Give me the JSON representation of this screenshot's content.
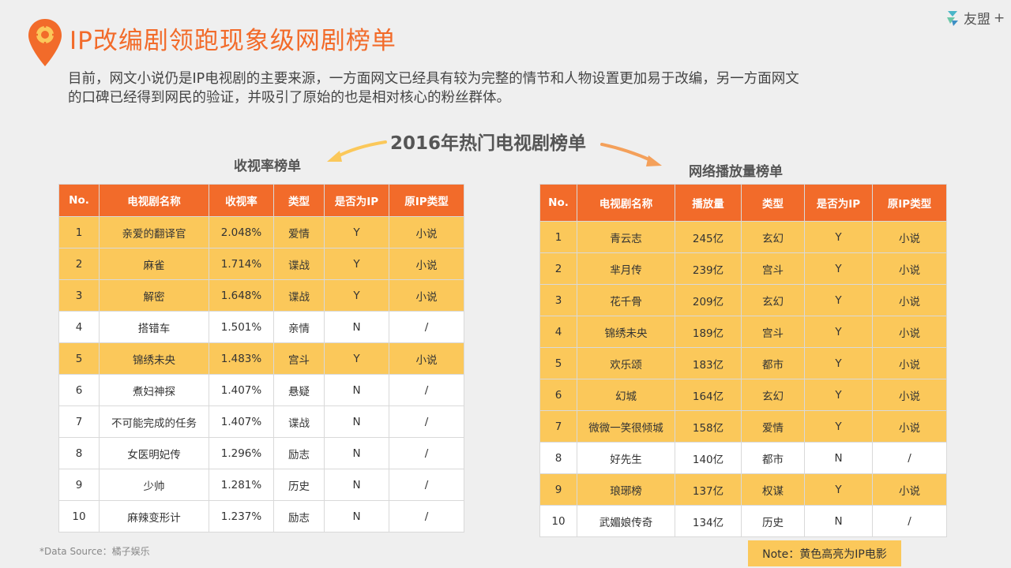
{
  "header": {
    "title": "IP改编剧领跑现象级网剧榜单",
    "logo_text": "友盟",
    "logo_plus": "+"
  },
  "intro": {
    "line1": "目前，网文小说仍是IP电视剧的主要来源，一方面网文已经具有较为完整的情节和人物设置更加易于改编，另一方面网文",
    "line2": "的口碑已经得到网民的验证，并吸引了原始的也是相对核心的粉丝群体。"
  },
  "chart_heading": "2016年热门电视剧榜单",
  "colors": {
    "accent": "#f26b2a",
    "highlight": "#fbc85a",
    "arrow": "#fbc85a",
    "arrow_right": "#f4a05a"
  },
  "left_table": {
    "title": "收视率榜单",
    "headers": [
      "No.",
      "电视剧名称",
      "收视率",
      "类型",
      "是否为IP",
      "原IP类型"
    ],
    "rows": [
      {
        "no": "1",
        "name": "亲爱的翻译官",
        "value": "2.048%",
        "type": "爱情",
        "is_ip": "Y",
        "ip_type": "小说",
        "highlight": true
      },
      {
        "no": "2",
        "name": "麻雀",
        "value": "1.714%",
        "type": "谍战",
        "is_ip": "Y",
        "ip_type": "小说",
        "highlight": true
      },
      {
        "no": "3",
        "name": "解密",
        "value": "1.648%",
        "type": "谍战",
        "is_ip": "Y",
        "ip_type": "小说",
        "highlight": true
      },
      {
        "no": "4",
        "name": "搭错车",
        "value": "1.501%",
        "type": "亲情",
        "is_ip": "N",
        "ip_type": "/",
        "highlight": false
      },
      {
        "no": "5",
        "name": "锦绣未央",
        "value": "1.483%",
        "type": "宫斗",
        "is_ip": "Y",
        "ip_type": "小说",
        "highlight": true
      },
      {
        "no": "6",
        "name": "煮妇神探",
        "value": "1.407%",
        "type": "悬疑",
        "is_ip": "N",
        "ip_type": "/",
        "highlight": false
      },
      {
        "no": "7",
        "name": "不可能完成的任务",
        "value": "1.407%",
        "type": "谍战",
        "is_ip": "N",
        "ip_type": "/",
        "highlight": false
      },
      {
        "no": "8",
        "name": "女医明妃传",
        "value": "1.296%",
        "type": "励志",
        "is_ip": "N",
        "ip_type": "/",
        "highlight": false
      },
      {
        "no": "9",
        "name": "少帅",
        "value": "1.281%",
        "type": "历史",
        "is_ip": "N",
        "ip_type": "/",
        "highlight": false
      },
      {
        "no": "10",
        "name": "麻辣变形计",
        "value": "1.237%",
        "type": "励志",
        "is_ip": "N",
        "ip_type": "/",
        "highlight": false
      }
    ]
  },
  "right_table": {
    "title": "网络播放量榜单",
    "headers": [
      "No.",
      "电视剧名称",
      "播放量",
      "类型",
      "是否为IP",
      "原IP类型"
    ],
    "rows": [
      {
        "no": "1",
        "name": "青云志",
        "value": "245亿",
        "type": "玄幻",
        "is_ip": "Y",
        "ip_type": "小说",
        "highlight": true
      },
      {
        "no": "2",
        "name": "芈月传",
        "value": "239亿",
        "type": "宫斗",
        "is_ip": "Y",
        "ip_type": "小说",
        "highlight": true
      },
      {
        "no": "3",
        "name": "花千骨",
        "value": "209亿",
        "type": "玄幻",
        "is_ip": "Y",
        "ip_type": "小说",
        "highlight": true
      },
      {
        "no": "4",
        "name": "锦绣未央",
        "value": "189亿",
        "type": "宫斗",
        "is_ip": "Y",
        "ip_type": "小说",
        "highlight": true
      },
      {
        "no": "5",
        "name": "欢乐颂",
        "value": "183亿",
        "type": "都市",
        "is_ip": "Y",
        "ip_type": "小说",
        "highlight": true
      },
      {
        "no": "6",
        "name": "幻城",
        "value": "164亿",
        "type": "玄幻",
        "is_ip": "Y",
        "ip_type": "小说",
        "highlight": true
      },
      {
        "no": "7",
        "name": "微微一笑很倾城",
        "value": "158亿",
        "type": "爱情",
        "is_ip": "Y",
        "ip_type": "小说",
        "highlight": true
      },
      {
        "no": "8",
        "name": "好先生",
        "value": "140亿",
        "type": "都市",
        "is_ip": "N",
        "ip_type": "/",
        "highlight": false
      },
      {
        "no": "9",
        "name": "琅琊榜",
        "value": "137亿",
        "type": "权谋",
        "is_ip": "Y",
        "ip_type": "小说",
        "highlight": true
      },
      {
        "no": "10",
        "name": "武媚娘传奇",
        "value": "134亿",
        "type": "历史",
        "is_ip": "N",
        "ip_type": "/",
        "highlight": false
      }
    ]
  },
  "footer": {
    "source": "*Data Source：橘子娱乐",
    "note": "Note：黄色高亮为IP电影"
  }
}
